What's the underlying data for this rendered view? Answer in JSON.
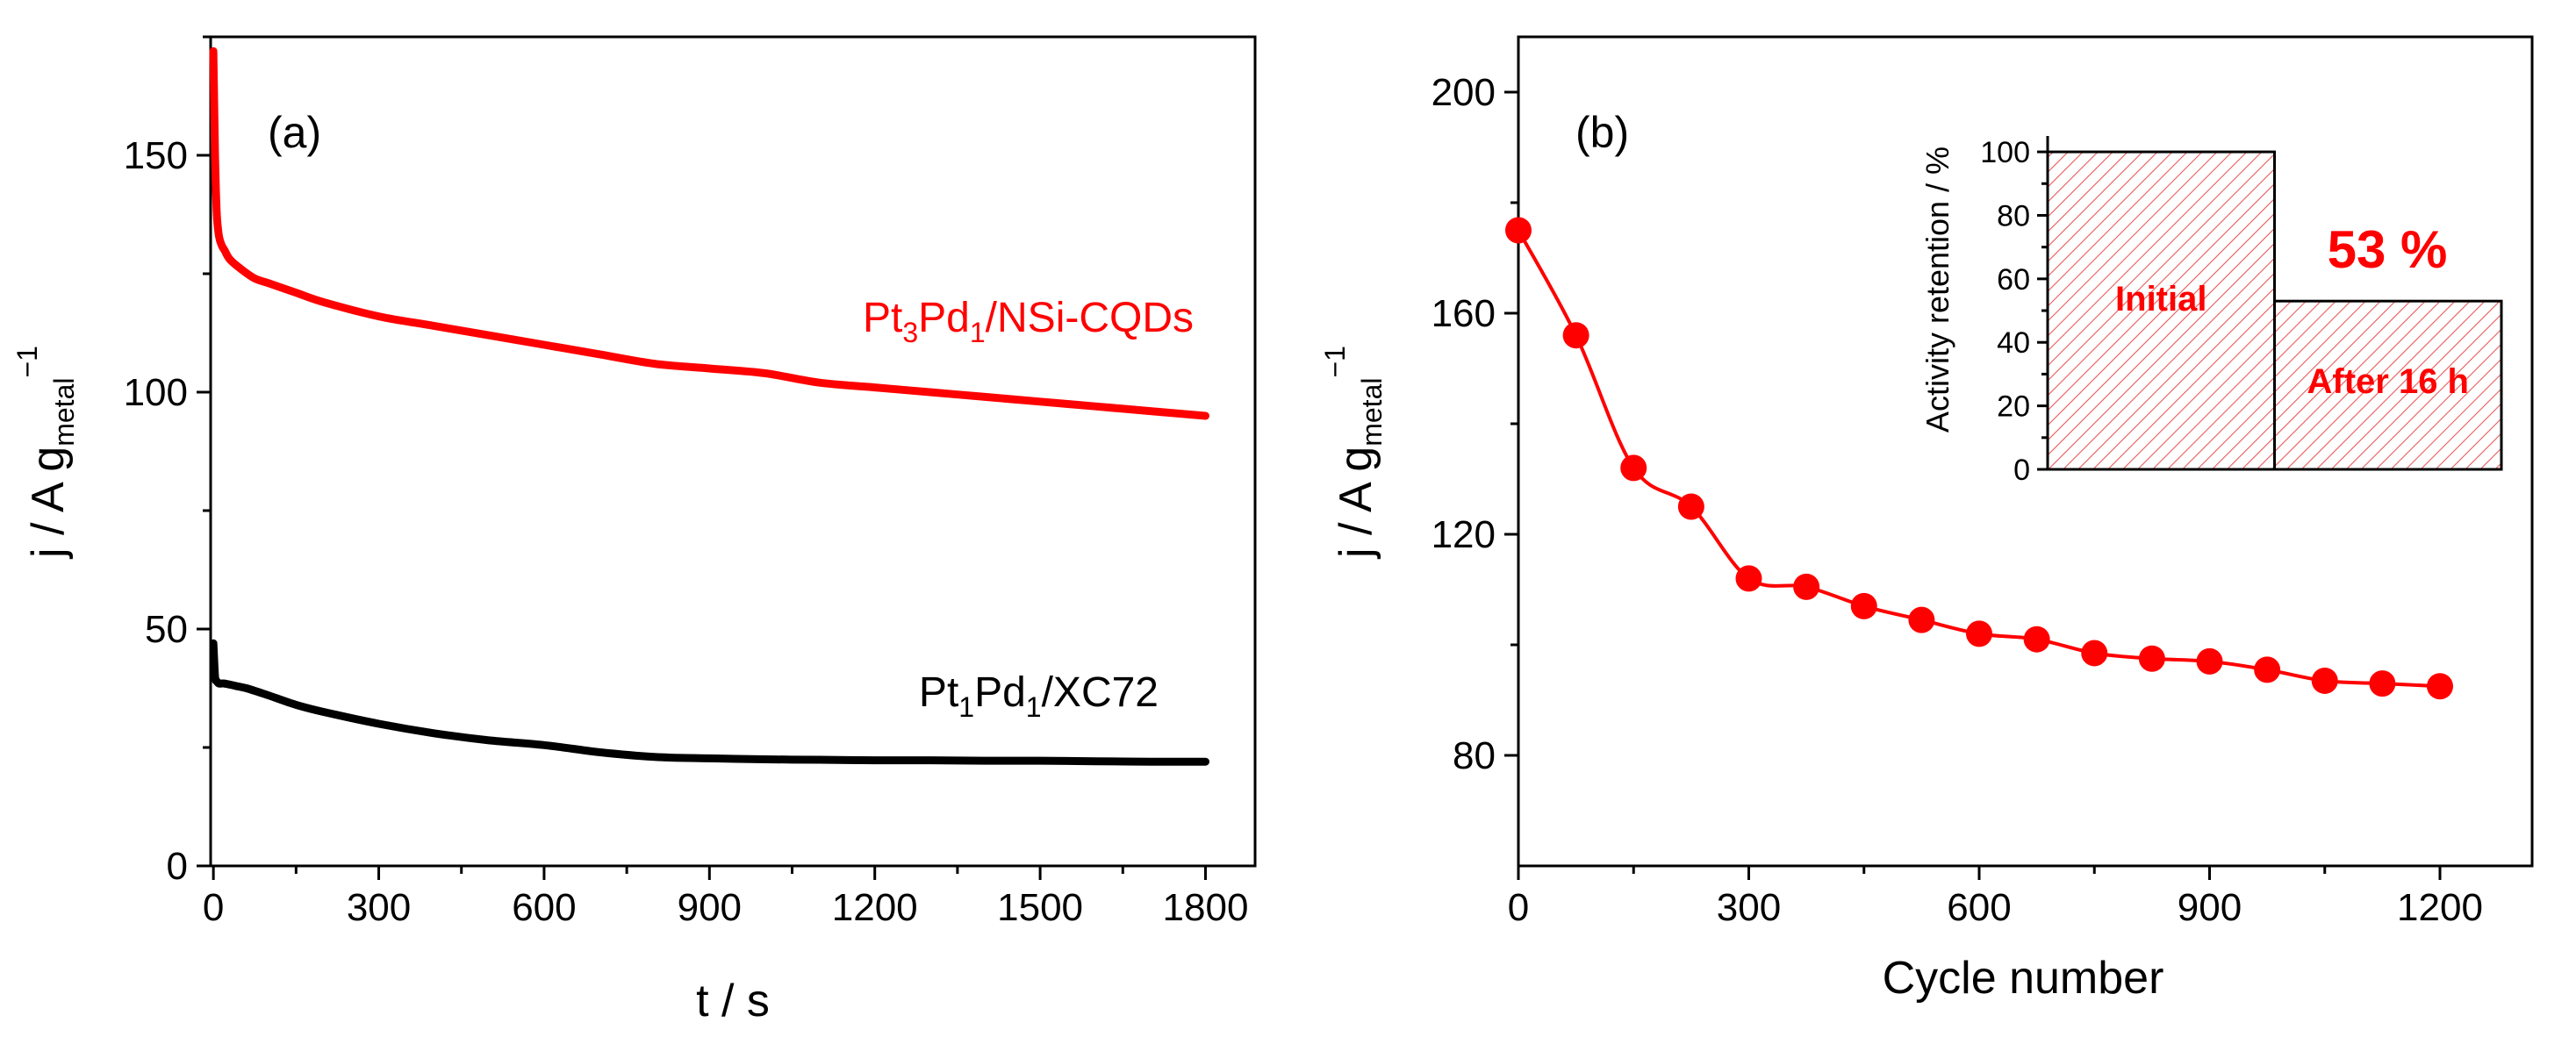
{
  "colors": {
    "red": "#ff0000",
    "black": "#000000",
    "hatch": "#e85a5a"
  },
  "chart_data": [
    {
      "id": "a",
      "type": "line",
      "panel_label": "(a)",
      "xlabel": "t / s",
      "ylabel": {
        "base": "j / A g",
        "sub": "metal",
        "sup": "−1"
      },
      "xlim": [
        -5,
        1890
      ],
      "ylim": [
        0,
        175
      ],
      "xticks": [
        0,
        300,
        600,
        900,
        1200,
        1500,
        1800
      ],
      "yticks": [
        0,
        50,
        100,
        150
      ],
      "grid": false,
      "series": [
        {
          "name": {
            "p1": "Pt",
            "s1": "3",
            "p2": "Pd",
            "s2": "1",
            "p3": "/NSi-CQDs"
          },
          "color": "#ff0000",
          "x": [
            0,
            3,
            6,
            10,
            15,
            20,
            30,
            50,
            75,
            100,
            150,
            200,
            300,
            400,
            500,
            600,
            700,
            800,
            900,
            1000,
            1100,
            1200,
            1300,
            1400,
            1500,
            1600,
            1700,
            1800
          ],
          "y": [
            172,
            150,
            138,
            133,
            131,
            130,
            128,
            126,
            124,
            123,
            121,
            119,
            116,
            114,
            112,
            110,
            108,
            106,
            105,
            104,
            102,
            101,
            100,
            99,
            98,
            97,
            96,
            95
          ]
        },
        {
          "name": {
            "p1": "Pt",
            "s1": "1",
            "p2": "Pd",
            "s2": "1",
            "p3": "/XC72"
          },
          "color": "#000000",
          "x": [
            0,
            3,
            6,
            10,
            20,
            40,
            60,
            100,
            150,
            200,
            300,
            400,
            500,
            600,
            700,
            800,
            900,
            1000,
            1100,
            1200,
            1300,
            1400,
            1500,
            1600,
            1700,
            1800
          ],
          "y": [
            47,
            40,
            39,
            38.5,
            38.5,
            38,
            37.5,
            36,
            34,
            32.5,
            30,
            28,
            26.5,
            25.5,
            24,
            23,
            22.7,
            22.5,
            22.4,
            22.3,
            22.3,
            22.2,
            22.2,
            22.1,
            22,
            22
          ]
        }
      ]
    },
    {
      "id": "b",
      "type": "line",
      "panel_label": "(b)",
      "xlabel": "Cycle number",
      "ylabel": {
        "base": "j / A g",
        "sub": "metal",
        "sup": "−1"
      },
      "xlim": [
        0,
        1320
      ],
      "ylim": [
        60,
        210
      ],
      "xticks": [
        0,
        300,
        600,
        900,
        1200
      ],
      "yticks": [
        80,
        120,
        160,
        200
      ],
      "grid": false,
      "series": [
        {
          "name": "Pt3Pd1/NSi-CQDs",
          "color": "#ff0000",
          "x": [
            0,
            75,
            150,
            225,
            300,
            375,
            450,
            525,
            600,
            675,
            750,
            825,
            900,
            975,
            1050,
            1125,
            1200
          ],
          "y": [
            175,
            156,
            132,
            125,
            112,
            110.5,
            107,
            104.5,
            102,
            101,
            98.5,
            97.5,
            97,
            95.5,
            93.5,
            93,
            92.5
          ]
        }
      ],
      "inset": {
        "type": "bar",
        "ylabel": "Activity retention / %",
        "ylim": [
          0,
          105
        ],
        "yticks": [
          0,
          20,
          40,
          60,
          80,
          100
        ],
        "categories": [
          "Initial",
          "After 16 h"
        ],
        "values": [
          100,
          53
        ],
        "annotation": "53 %"
      }
    }
  ]
}
